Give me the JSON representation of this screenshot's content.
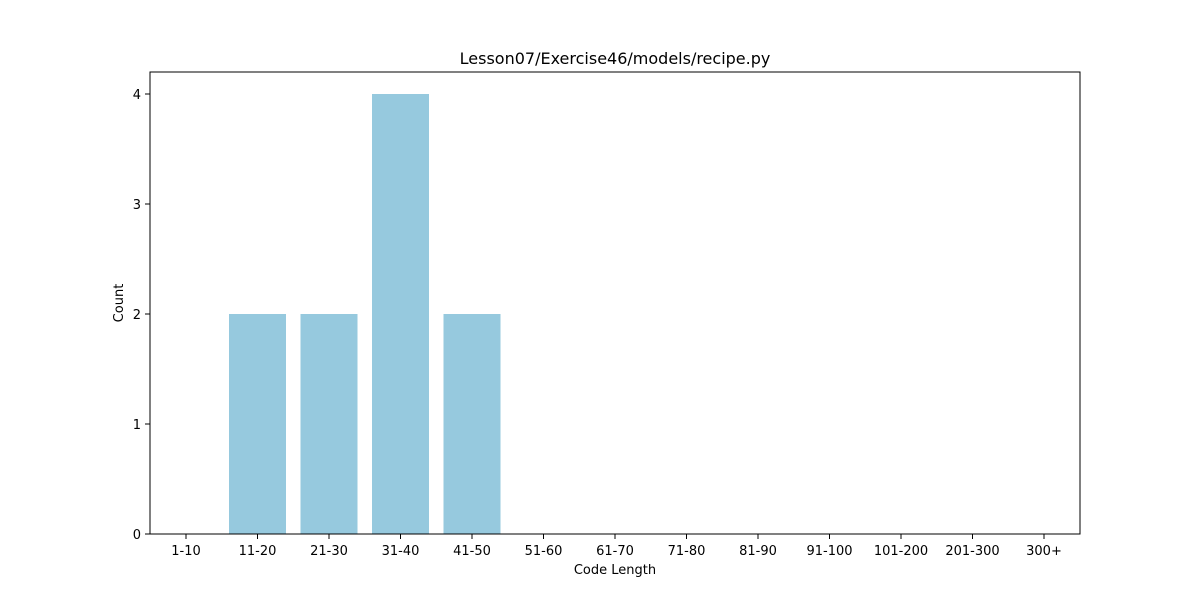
{
  "chart_data": {
    "type": "bar",
    "title": "Lesson07/Exercise46/models/recipe.py",
    "xlabel": "Code Length",
    "ylabel": "Count",
    "categories": [
      "1-10",
      "11-20",
      "21-30",
      "31-40",
      "41-50",
      "51-60",
      "61-70",
      "71-80",
      "81-90",
      "91-100",
      "101-200",
      "201-300",
      "300+"
    ],
    "values": [
      0,
      2,
      2,
      4,
      2,
      0,
      0,
      0,
      0,
      0,
      0,
      0,
      0
    ],
    "yticks": [
      0,
      1,
      2,
      3,
      4
    ],
    "ylim": [
      0,
      4.2
    ],
    "grid": false,
    "bar_color": "#96c9de"
  }
}
